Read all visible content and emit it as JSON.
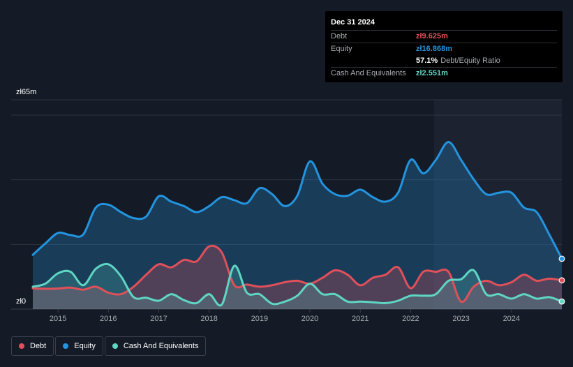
{
  "tooltip": {
    "date": "Dec 31 2024",
    "rows": [
      {
        "label": "Debt",
        "value": "zł9.625m",
        "color": "#e0505a"
      },
      {
        "label": "Equity",
        "value": "zł16.868m",
        "color": "#2394df"
      },
      {
        "label": "",
        "value": "57.1%",
        "suffix": "Debt/Equity Ratio",
        "color": "#ffffff"
      },
      {
        "label": "Cash And Equivalents",
        "value": "zł2.551m",
        "color": "#5fd6c3"
      }
    ]
  },
  "legend": [
    {
      "label": "Debt",
      "color": "#e0505a"
    },
    {
      "label": "Equity",
      "color": "#2394df"
    },
    {
      "label": "Cash And Equivalents",
      "color": "#5fd6c3"
    }
  ],
  "chart_data": {
    "type": "area",
    "ytick_labels": [
      "zł65m",
      "zł0"
    ],
    "ylim": [
      0,
      65
    ],
    "xlim": [
      2014.5,
      2025.0
    ],
    "xticks": [
      "2015",
      "2016",
      "2017",
      "2018",
      "2019",
      "2020",
      "2021",
      "2022",
      "2023",
      "2024"
    ],
    "grid": true,
    "legend_position": "bottom-left",
    "series": [
      {
        "name": "Equity",
        "color": "#2394df",
        "points": [
          [
            2014.5,
            18.2
          ],
          [
            2014.75,
            22.0
          ],
          [
            2015.0,
            25.5
          ],
          [
            2015.25,
            24.8
          ],
          [
            2015.5,
            25.0
          ],
          [
            2015.75,
            34.0
          ],
          [
            2016.0,
            35.0
          ],
          [
            2016.25,
            32.5
          ],
          [
            2016.5,
            30.5
          ],
          [
            2016.75,
            31.0
          ],
          [
            2017.0,
            37.8
          ],
          [
            2017.25,
            36.0
          ],
          [
            2017.5,
            34.5
          ],
          [
            2017.75,
            32.5
          ],
          [
            2018.0,
            34.5
          ],
          [
            2018.25,
            37.5
          ],
          [
            2018.5,
            36.5
          ],
          [
            2018.75,
            35.5
          ],
          [
            2019.0,
            40.5
          ],
          [
            2019.25,
            38.5
          ],
          [
            2019.5,
            34.5
          ],
          [
            2019.75,
            38.0
          ],
          [
            2020.0,
            49.5
          ],
          [
            2020.25,
            42.0
          ],
          [
            2020.5,
            38.5
          ],
          [
            2020.75,
            38.0
          ],
          [
            2021.0,
            40.0
          ],
          [
            2021.25,
            37.5
          ],
          [
            2021.5,
            36.0
          ],
          [
            2021.75,
            39.0
          ],
          [
            2022.0,
            50.0
          ],
          [
            2022.25,
            45.5
          ],
          [
            2022.5,
            50.0
          ],
          [
            2022.75,
            56.0
          ],
          [
            2023.0,
            50.0
          ],
          [
            2023.25,
            43.5
          ],
          [
            2023.5,
            38.5
          ],
          [
            2023.75,
            39.0
          ],
          [
            2024.0,
            39.0
          ],
          [
            2024.25,
            34.0
          ],
          [
            2024.5,
            32.5
          ],
          [
            2024.75,
            25.0
          ],
          [
            2025.0,
            16.87
          ]
        ]
      },
      {
        "name": "Debt",
        "color": "#e0505a",
        "points": [
          [
            2014.5,
            7.0
          ],
          [
            2014.75,
            6.8
          ],
          [
            2015.0,
            6.9
          ],
          [
            2015.25,
            7.2
          ],
          [
            2015.5,
            6.5
          ],
          [
            2015.75,
            7.5
          ],
          [
            2016.0,
            5.5
          ],
          [
            2016.25,
            5.0
          ],
          [
            2016.5,
            7.5
          ],
          [
            2016.75,
            11.5
          ],
          [
            2017.0,
            15.0
          ],
          [
            2017.25,
            14.0
          ],
          [
            2017.5,
            16.5
          ],
          [
            2017.75,
            16.0
          ],
          [
            2018.0,
            21.0
          ],
          [
            2018.25,
            19.0
          ],
          [
            2018.5,
            8.0
          ],
          [
            2018.75,
            8.2
          ],
          [
            2019.0,
            7.5
          ],
          [
            2019.25,
            8.0
          ],
          [
            2019.5,
            9.0
          ],
          [
            2019.75,
            9.5
          ],
          [
            2020.0,
            8.5
          ],
          [
            2020.25,
            10.5
          ],
          [
            2020.5,
            13.0
          ],
          [
            2020.75,
            11.5
          ],
          [
            2021.0,
            8.0
          ],
          [
            2021.25,
            10.5
          ],
          [
            2021.5,
            11.5
          ],
          [
            2021.75,
            14.0
          ],
          [
            2022.0,
            7.0
          ],
          [
            2022.25,
            12.5
          ],
          [
            2022.5,
            12.5
          ],
          [
            2022.75,
            12.5
          ],
          [
            2023.0,
            2.5
          ],
          [
            2023.25,
            7.5
          ],
          [
            2023.5,
            9.5
          ],
          [
            2023.75,
            8.0
          ],
          [
            2024.0,
            9.0
          ],
          [
            2024.25,
            11.5
          ],
          [
            2024.5,
            9.5
          ],
          [
            2024.75,
            10.2
          ],
          [
            2025.0,
            9.63
          ]
        ]
      },
      {
        "name": "Cash And Equivalents",
        "color": "#5fd6c3",
        "points": [
          [
            2014.5,
            7.5
          ],
          [
            2014.75,
            8.5
          ],
          [
            2015.0,
            12.0
          ],
          [
            2015.25,
            12.5
          ],
          [
            2015.5,
            8.0
          ],
          [
            2015.75,
            13.5
          ],
          [
            2016.0,
            15.0
          ],
          [
            2016.25,
            11.0
          ],
          [
            2016.5,
            4.0
          ],
          [
            2016.75,
            3.8
          ],
          [
            2017.0,
            2.8
          ],
          [
            2017.25,
            5.0
          ],
          [
            2017.5,
            3.0
          ],
          [
            2017.75,
            2.0
          ],
          [
            2018.0,
            5.0
          ],
          [
            2018.25,
            1.5
          ],
          [
            2018.5,
            14.5
          ],
          [
            2018.75,
            5.5
          ],
          [
            2019.0,
            5.0
          ],
          [
            2019.25,
            1.8
          ],
          [
            2019.5,
            2.5
          ],
          [
            2019.75,
            4.5
          ],
          [
            2020.0,
            8.5
          ],
          [
            2020.25,
            5.0
          ],
          [
            2020.5,
            5.0
          ],
          [
            2020.75,
            2.5
          ],
          [
            2021.0,
            2.5
          ],
          [
            2021.25,
            2.3
          ],
          [
            2021.5,
            2.0
          ],
          [
            2021.75,
            2.8
          ],
          [
            2022.0,
            4.5
          ],
          [
            2022.25,
            4.5
          ],
          [
            2022.5,
            5.0
          ],
          [
            2022.75,
            9.5
          ],
          [
            2023.0,
            10.0
          ],
          [
            2023.25,
            13.0
          ],
          [
            2023.5,
            5.0
          ],
          [
            2023.75,
            5.0
          ],
          [
            2024.0,
            3.5
          ],
          [
            2024.25,
            5.0
          ],
          [
            2024.5,
            3.5
          ],
          [
            2024.75,
            4.0
          ],
          [
            2025.0,
            2.55
          ]
        ]
      }
    ]
  }
}
